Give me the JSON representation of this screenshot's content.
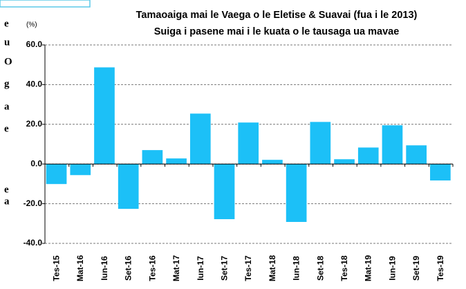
{
  "chart_data": {
    "type": "bar",
    "title": "Tamaoaiga  mai le Vaega o le Eletise & Suavai (fua i le 2013)",
    "subtitle": "Suiga i pasene mai i le kuata o le tausaga ua mavae",
    "y_label": "(%)",
    "margin_text": [
      "e",
      "u",
      "O",
      "g",
      "a",
      "e",
      "e",
      "a"
    ],
    "categories": [
      "Tes-15",
      "Mat-16",
      "Iun-16",
      "Set-16",
      "Tes-16",
      "Mat-17",
      "Iun-17",
      "Set-17",
      "Tes-17",
      "Mat-18",
      "Iun-18",
      "Set-18",
      "Tes-18",
      "Mat-19",
      "Iun-19",
      "Set-19",
      "Tes-19"
    ],
    "values": [
      -10.1,
      -5.6,
      48.7,
      -22.6,
      7.0,
      2.8,
      25.4,
      -27.8,
      20.9,
      2.1,
      -29.2,
      21.2,
      2.4,
      8.3,
      19.5,
      9.4,
      -8.3
    ],
    "color": "#1cc0f7",
    "ylim": [
      -40,
      60
    ],
    "yticks": [
      {
        "value": 60,
        "label": "60.0"
      },
      {
        "value": 40,
        "label": "40.0"
      },
      {
        "value": 20,
        "label": "20.0"
      },
      {
        "value": 0,
        "label": "0.0"
      },
      {
        "value": -20,
        "label": "-20.0"
      },
      {
        "value": -40,
        "label": "-40.0"
      }
    ],
    "grid": true
  }
}
